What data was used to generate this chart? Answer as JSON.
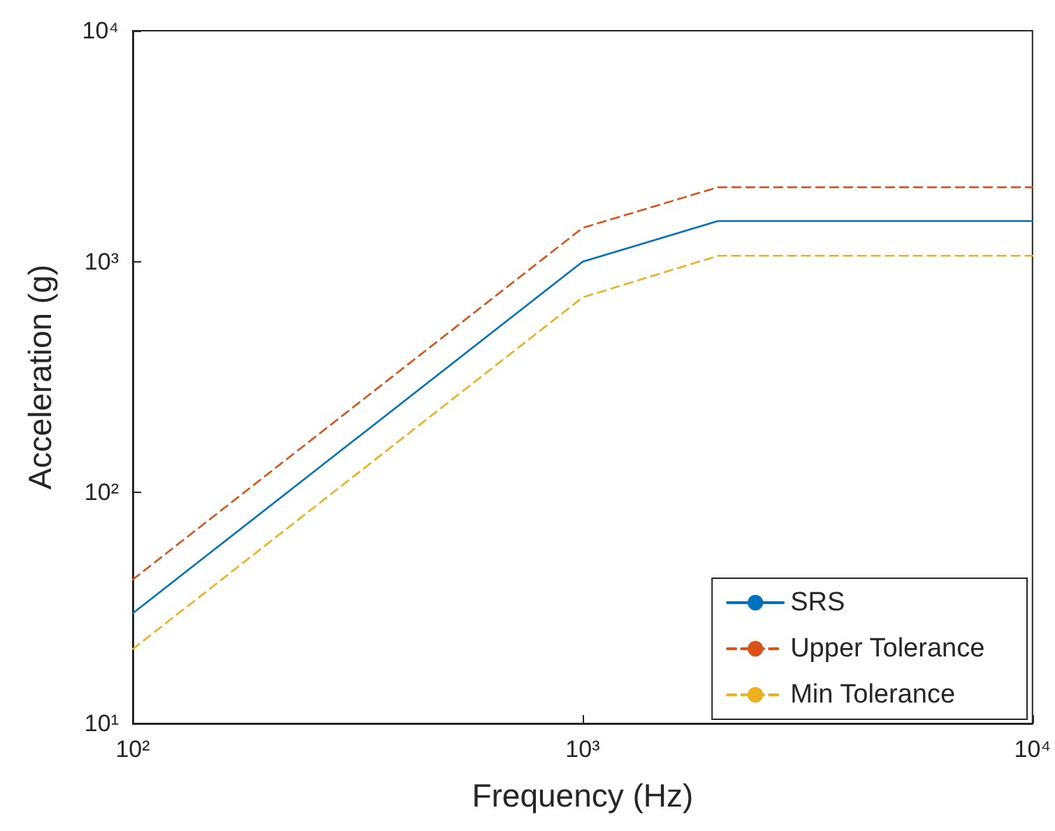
{
  "chart_data": {
    "type": "line",
    "xlabel": "Frequency (Hz)",
    "ylabel": "Acceleration (g)",
    "log": "xy",
    "grid": false,
    "legend": "bottom right",
    "marker": "none",
    "xlim": [
      100,
      10000
    ],
    "ylim": [
      10,
      10000
    ],
    "xticks": [
      {
        "value": 100,
        "label": "10²"
      },
      {
        "value": 1000,
        "label": "10³"
      },
      {
        "value": 10000,
        "label": "10⁴"
      }
    ],
    "yticks": [
      {
        "value": 10,
        "label": "10¹"
      },
      {
        "value": 100,
        "label": "10²"
      },
      {
        "value": 1000,
        "label": "10³"
      },
      {
        "value": 10000,
        "label": "10⁴"
      }
    ],
    "x": [
      100,
      1000,
      2000,
      10000
    ],
    "series": [
      {
        "name": "SRS",
        "color": "#0072bd",
        "line_style": "solid",
        "values": [
          30,
          1000,
          1500,
          1500
        ]
      },
      {
        "name": "Upper Tolerance",
        "color": "#d95319",
        "line_style": "dashed",
        "values": [
          42,
          1400,
          2100,
          2100
        ]
      },
      {
        "name": "Min Tolerance",
        "color": "#edb120",
        "line_style": "dashed",
        "values": [
          21,
          700,
          1060,
          1060
        ]
      }
    ]
  }
}
